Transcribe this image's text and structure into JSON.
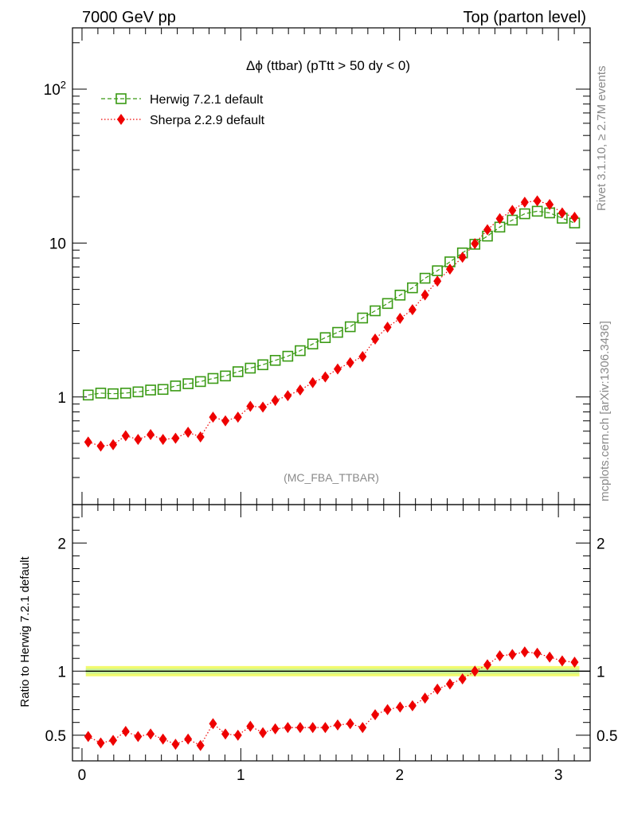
{
  "header": {
    "left": "7000 GeV pp",
    "right": "Top (parton level)"
  },
  "side_labels": {
    "rivet": "Rivet 3.1.10, ≥ 2.7M events",
    "mcplots": "mcplots.cern.ch [arXiv:1306.3436]"
  },
  "colors": {
    "herwig": "#3a9a14",
    "sherpa": "#ee0000",
    "band_outer": "#f2fa6e",
    "band_inner": "#c8f29a"
  },
  "chart_data": [
    {
      "type": "line",
      "panel": "main",
      "title": "Δϕ (ttbar) (pTtt > 50 dy < 0)",
      "analysis_label": "(MC_FBA_TTBAR)",
      "xlabel": "",
      "ylabel": "",
      "yscale": "log",
      "xlim": [
        -0.06,
        3.2
      ],
      "ylim": [
        0.2,
        250
      ],
      "yticks": [
        {
          "value": 1,
          "label": "1"
        },
        {
          "value": 10,
          "label": "10"
        },
        {
          "value": 100,
          "label": "10^2"
        }
      ],
      "legend_position": "top-left",
      "x": [
        0.039,
        0.118,
        0.196,
        0.275,
        0.353,
        0.432,
        0.51,
        0.589,
        0.668,
        0.746,
        0.825,
        0.903,
        0.982,
        1.06,
        1.139,
        1.217,
        1.296,
        1.374,
        1.453,
        1.532,
        1.61,
        1.689,
        1.767,
        1.846,
        1.924,
        2.003,
        2.081,
        2.16,
        2.238,
        2.317,
        2.396,
        2.474,
        2.553,
        2.631,
        2.71,
        2.788,
        2.867,
        2.945,
        3.024,
        3.102
      ],
      "series": [
        {
          "name": "Herwig 7.2.1 default",
          "marker": "open-square",
          "line": "dashed",
          "values": [
            1.03,
            1.06,
            1.05,
            1.06,
            1.08,
            1.11,
            1.12,
            1.18,
            1.22,
            1.26,
            1.32,
            1.37,
            1.46,
            1.54,
            1.62,
            1.73,
            1.84,
            2.0,
            2.21,
            2.43,
            2.63,
            2.86,
            3.26,
            3.63,
            4.05,
            4.59,
            5.12,
            5.91,
            6.61,
            7.55,
            8.63,
            9.82,
            11.1,
            12.7,
            14.1,
            15.5,
            16.1,
            15.7,
            14.5,
            13.5
          ]
        },
        {
          "name": "Sherpa 2.2.9 default",
          "marker": "filled-diamond",
          "line": "dotted",
          "values": [
            0.51,
            0.48,
            0.49,
            0.56,
            0.53,
            0.57,
            0.53,
            0.54,
            0.59,
            0.55,
            0.74,
            0.7,
            0.74,
            0.87,
            0.86,
            0.95,
            1.02,
            1.11,
            1.24,
            1.35,
            1.52,
            1.67,
            1.83,
            2.38,
            2.84,
            3.24,
            3.69,
            4.6,
            5.66,
            6.77,
            8.08,
            9.91,
            12.2,
            14.4,
            16.3,
            18.4,
            18.8,
            17.8,
            15.7,
            14.7
          ]
        }
      ]
    },
    {
      "type": "line",
      "panel": "ratio",
      "ylabel": "Ratio to Herwig 7.2.1 default",
      "xlim": [
        -0.06,
        3.2
      ],
      "ylim": [
        0.3,
        2.3
      ],
      "xticks": [
        {
          "value": 0,
          "label": "0"
        },
        {
          "value": 1,
          "label": "1"
        },
        {
          "value": 2,
          "label": "2"
        },
        {
          "value": 3,
          "label": "3"
        }
      ],
      "yticks": [
        {
          "value": 0.5,
          "label": "0.5"
        },
        {
          "value": 1,
          "label": "1"
        },
        {
          "value": 2,
          "label": "2"
        }
      ],
      "reference_line": 1,
      "x": [
        0.039,
        0.118,
        0.196,
        0.275,
        0.353,
        0.432,
        0.51,
        0.589,
        0.668,
        0.746,
        0.825,
        0.903,
        0.982,
        1.06,
        1.139,
        1.217,
        1.296,
        1.374,
        1.453,
        1.532,
        1.61,
        1.689,
        1.767,
        1.846,
        1.924,
        2.003,
        2.081,
        2.16,
        2.238,
        2.317,
        2.396,
        2.474,
        2.553,
        2.631,
        2.71,
        2.788,
        2.867,
        2.945,
        3.024,
        3.102
      ],
      "series": [
        {
          "name": "Sherpa 2.2.9 default",
          "marker": "filled-diamond",
          "line": "dotted",
          "values": [
            0.49,
            0.44,
            0.46,
            0.53,
            0.49,
            0.51,
            0.47,
            0.43,
            0.47,
            0.42,
            0.59,
            0.51,
            0.5,
            0.57,
            0.52,
            0.55,
            0.56,
            0.56,
            0.56,
            0.56,
            0.58,
            0.59,
            0.56,
            0.66,
            0.7,
            0.72,
            0.73,
            0.79,
            0.86,
            0.9,
            0.94,
            1.0,
            1.05,
            1.12,
            1.13,
            1.15,
            1.14,
            1.11,
            1.08,
            1.07
          ],
          "errors": [
            0.03,
            0.03,
            0.03,
            0.03,
            0.03,
            0.03,
            0.03,
            0.03,
            0.03,
            0.03,
            0.03,
            0.03,
            0.03,
            0.03,
            0.02,
            0.02,
            0.02,
            0.02,
            0.02,
            0.02,
            0.02,
            0.02,
            0.02,
            0.02,
            0.02,
            0.02,
            0.02,
            0.02,
            0.02,
            0.02,
            0.02,
            0.02,
            0.02,
            0.02,
            0.02,
            0.02,
            0.02,
            0.02,
            0.02,
            0.02
          ]
        }
      ]
    }
  ]
}
